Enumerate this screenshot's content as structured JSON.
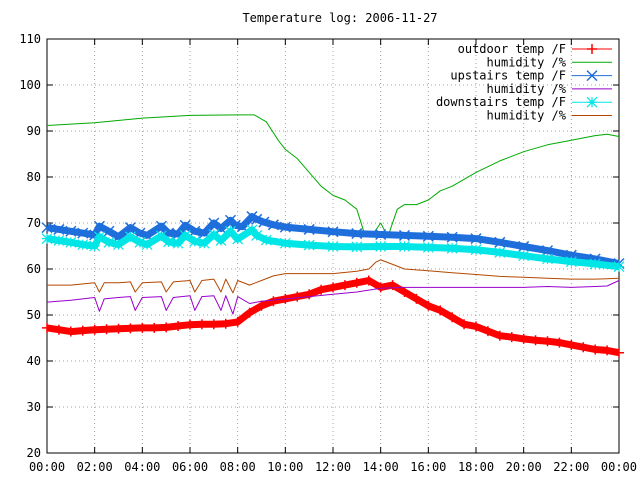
{
  "chart_data": {
    "type": "line",
    "title": "Temperature log: 2006-11-27",
    "xlabel": "",
    "ylabel": "",
    "ylim": [
      20,
      110
    ],
    "y_ticks": [
      "20",
      "30",
      "40",
      "50",
      "60",
      "70",
      "80",
      "90",
      "100",
      "110"
    ],
    "x_tick_labels": [
      "00:00",
      "02:00",
      "04:00",
      "06:00",
      "08:00",
      "10:00",
      "12:00",
      "14:00",
      "16:00",
      "18:00",
      "20:00",
      "22:00",
      "00:00"
    ],
    "grid": true,
    "legend_position": "top-right",
    "series": [
      {
        "name": "outdoor temp /F",
        "color": "#ff0000",
        "marker": "plus",
        "x_hours": [
          0,
          0.5,
          1,
          1.5,
          2,
          2.5,
          3,
          3.5,
          4,
          4.5,
          5,
          5.5,
          6,
          6.5,
          7,
          7.5,
          8,
          8.5,
          9,
          9.5,
          10,
          10.5,
          11,
          11.5,
          12,
          12.5,
          13,
          13.5,
          14,
          14.5,
          15,
          15.5,
          16,
          16.5,
          17,
          17.5,
          18,
          18.5,
          19,
          19.5,
          20,
          20.5,
          21,
          21.5,
          22,
          22.5,
          23,
          23.5,
          24
        ],
        "values": [
          47.2,
          46.8,
          46.4,
          46.6,
          46.8,
          46.9,
          47,
          47.1,
          47.2,
          47.2,
          47.3,
          47.6,
          47.9,
          48,
          48,
          48.1,
          48.5,
          50.5,
          52,
          53,
          53.5,
          54,
          54.5,
          55.5,
          56,
          56.5,
          57,
          57.5,
          56,
          56.5,
          55,
          53.5,
          52,
          51,
          49.5,
          48,
          47.5,
          46.5,
          45.5,
          45.2,
          44.8,
          44.5,
          44.3,
          44,
          43.5,
          43,
          42.5,
          42.3,
          41.8
        ]
      },
      {
        "name": "humidity /%",
        "color": "#00aa00",
        "marker": "none",
        "x_hours": [
          0,
          2,
          4,
          6,
          8,
          8.7,
          9.2,
          9.7,
          10,
          10.5,
          11,
          11.5,
          12,
          12.5,
          13,
          13.3,
          13.6,
          14,
          14.3,
          14.7,
          15,
          15.5,
          16,
          16.5,
          17,
          18,
          19,
          20,
          21,
          22,
          23,
          23.5,
          24
        ],
        "values": [
          91.2,
          91.8,
          92.8,
          93.4,
          93.5,
          93.5,
          92,
          88,
          86,
          84,
          81,
          78,
          76,
          75,
          73,
          68,
          67,
          70,
          67,
          73,
          74,
          74,
          75,
          77,
          78,
          81,
          83.5,
          85.5,
          87,
          88,
          89,
          89.3,
          88.8
        ]
      },
      {
        "name": "upstairs temp /F",
        "color": "#1e6fdc",
        "marker": "x",
        "x_hours": [
          0,
          0.5,
          1,
          1.5,
          2,
          2.2,
          2.6,
          3,
          3.5,
          3.9,
          4.2,
          4.8,
          5.1,
          5.5,
          5.8,
          6.2,
          6.6,
          7,
          7.3,
          7.7,
          7.9,
          8.2,
          8.6,
          8.8,
          9.1,
          9.5,
          10,
          11,
          12,
          13,
          14,
          15,
          16,
          17,
          18,
          19,
          20,
          21,
          22,
          23,
          24
        ],
        "values": [
          69,
          68.6,
          68.2,
          67.8,
          67.4,
          69.3,
          68.2,
          67,
          69,
          67.8,
          67.3,
          69.3,
          67.8,
          67.6,
          69.5,
          68.2,
          67.8,
          70,
          68.8,
          70.6,
          69.5,
          69.2,
          71.4,
          70.8,
          70.2,
          69.6,
          69.1,
          68.6,
          68.1,
          67.7,
          67.5,
          67.3,
          67.1,
          66.9,
          66.6,
          65.8,
          64.9,
          64,
          63,
          62.2,
          61.2
        ]
      },
      {
        "name": "humidity /%",
        "color": "#9900cc",
        "marker": "none",
        "x_hours": [
          0,
          1,
          2,
          2.2,
          2.4,
          3,
          3.5,
          3.7,
          4,
          4.8,
          5,
          5.3,
          6,
          6.2,
          6.5,
          7,
          7.3,
          7.5,
          7.8,
          8,
          8.5,
          9,
          10,
          11,
          12,
          13,
          14,
          15,
          16,
          17,
          18,
          19,
          20,
          21,
          22,
          23,
          23.5,
          24
        ],
        "values": [
          52.8,
          53.2,
          53.8,
          50.8,
          53.5,
          53.8,
          54,
          51,
          53.8,
          54,
          51,
          53.8,
          54.2,
          51,
          54,
          54.2,
          51,
          54.2,
          50.2,
          54,
          52.5,
          53,
          53.5,
          54,
          54.5,
          55,
          55.8,
          56,
          56,
          56,
          56,
          56,
          56,
          56.2,
          56,
          56.2,
          56.3,
          57.5
        ]
      },
      {
        "name": "downstairs temp /F",
        "color": "#00e5e5",
        "marker": "star",
        "x_hours": [
          0,
          0.5,
          1,
          1.5,
          2,
          2.2,
          2.6,
          3,
          3.5,
          3.9,
          4.2,
          4.8,
          5.1,
          5.5,
          5.8,
          6.2,
          6.6,
          7,
          7.3,
          7.7,
          8,
          8.6,
          8.8,
          9.2,
          10,
          11,
          12,
          13,
          14,
          15,
          16,
          17,
          18,
          19,
          20,
          21,
          22,
          23,
          24
        ],
        "values": [
          66.6,
          66.2,
          65.8,
          65.3,
          65,
          67,
          65.8,
          65.3,
          67,
          65.8,
          65.3,
          67.2,
          65.9,
          65.6,
          67.3,
          66,
          65.6,
          67.5,
          66.2,
          68.2,
          66.5,
          68.5,
          67.3,
          66.3,
          65.6,
          65.2,
          64.9,
          64.8,
          64.9,
          64.9,
          64.7,
          64.5,
          64.2,
          63.6,
          62.9,
          62.2,
          61.6,
          61.1,
          60.5
        ]
      },
      {
        "name": "humidity /%",
        "color": "#b34700",
        "marker": "none",
        "x_hours": [
          0,
          1,
          2,
          2.2,
          2.4,
          3,
          3.5,
          3.7,
          4,
          4.8,
          5,
          5.3,
          6,
          6.2,
          6.5,
          7,
          7.3,
          7.5,
          7.8,
          8,
          8.5,
          9,
          9.5,
          10,
          11,
          12,
          13,
          13.5,
          13.8,
          14,
          14.5,
          15,
          16,
          17,
          18,
          19,
          20,
          21,
          22,
          23,
          23.5,
          24
        ],
        "values": [
          56.5,
          56.5,
          57,
          55,
          57,
          57,
          57.2,
          55,
          57,
          57.2,
          55,
          57.2,
          57.5,
          55,
          57.5,
          57.8,
          55,
          57.8,
          54.8,
          57.5,
          56.5,
          57.5,
          58.5,
          59,
          59,
          59,
          59.5,
          60,
          61.5,
          62,
          61,
          60,
          59.6,
          59.2,
          58.8,
          58.4,
          58.2,
          58,
          57.8,
          57.8,
          57.9,
          58
        ]
      }
    ]
  }
}
